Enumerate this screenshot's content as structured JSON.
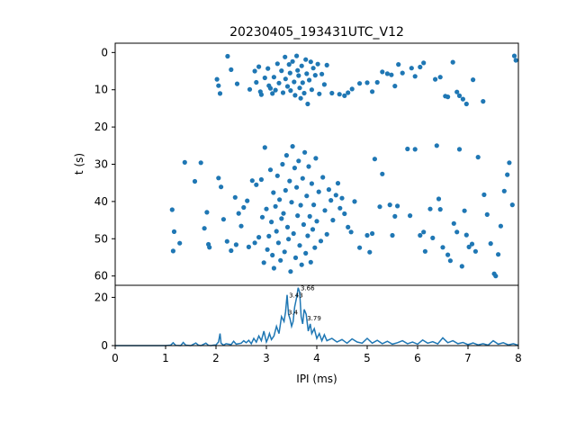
{
  "chart_data": [
    {
      "type": "scatter",
      "title": "20230405_193431UTC_V12",
      "xlabel": "",
      "ylabel": "t (s)",
      "xlim": [
        0,
        8
      ],
      "ylim": [
        62.5,
        -2.5
      ],
      "y_inverted": true,
      "yticks": [
        "0",
        "10",
        "20",
        "30",
        "40",
        "50",
        "60"
      ],
      "marker_color": "#1f77b4",
      "grid": false,
      "points": [
        [
          2.02,
          7.2
        ],
        [
          2.05,
          8.9
        ],
        [
          2.08,
          11.0
        ],
        [
          2.23,
          1.0
        ],
        [
          2.3,
          4.6
        ],
        [
          2.42,
          8.4
        ],
        [
          2.67,
          9.9
        ],
        [
          2.77,
          5.0
        ],
        [
          2.8,
          8.0
        ],
        [
          2.85,
          3.8
        ],
        [
          2.88,
          10.5
        ],
        [
          2.9,
          11.3
        ],
        [
          2.97,
          6.8
        ],
        [
          3.03,
          4.3
        ],
        [
          3.05,
          8.9
        ],
        [
          3.08,
          9.6
        ],
        [
          3.12,
          11.0
        ],
        [
          3.15,
          6.6
        ],
        [
          3.18,
          10.1
        ],
        [
          3.22,
          3.0
        ],
        [
          3.25,
          8.2
        ],
        [
          3.3,
          4.9
        ],
        [
          3.33,
          10.8
        ],
        [
          3.37,
          1.2
        ],
        [
          3.38,
          7.1
        ],
        [
          3.42,
          9.1
        ],
        [
          3.45,
          3.2
        ],
        [
          3.47,
          5.5
        ],
        [
          3.48,
          10.2
        ],
        [
          3.52,
          2.4
        ],
        [
          3.55,
          7.9
        ],
        [
          3.57,
          11.5
        ],
        [
          3.6,
          0.9
        ],
        [
          3.62,
          4.8
        ],
        [
          3.64,
          6.2
        ],
        [
          3.66,
          9.5
        ],
        [
          3.68,
          12.3
        ],
        [
          3.7,
          3.6
        ],
        [
          3.72,
          8.1
        ],
        [
          3.75,
          10.9
        ],
        [
          3.78,
          1.9
        ],
        [
          3.8,
          5.7
        ],
        [
          3.82,
          13.8
        ],
        [
          3.85,
          7.4
        ],
        [
          3.88,
          2.5
        ],
        [
          3.9,
          10.0
        ],
        [
          3.93,
          4.2
        ],
        [
          3.97,
          6.1
        ],
        [
          4.02,
          3.1
        ],
        [
          4.05,
          11.1
        ],
        [
          4.1,
          5.8
        ],
        [
          4.15,
          8.6
        ],
        [
          4.2,
          3.4
        ],
        [
          4.3,
          10.9
        ],
        [
          4.45,
          11.2
        ],
        [
          4.55,
          11.6
        ],
        [
          4.62,
          10.8
        ],
        [
          4.7,
          9.8
        ],
        [
          4.85,
          8.3
        ],
        [
          5.0,
          8.1
        ],
        [
          5.1,
          10.5
        ],
        [
          5.2,
          8.0
        ],
        [
          5.3,
          5.2
        ],
        [
          5.4,
          5.7
        ],
        [
          5.48,
          6.0
        ],
        [
          5.55,
          9.0
        ],
        [
          5.62,
          3.2
        ],
        [
          5.7,
          5.5
        ],
        [
          5.88,
          4.2
        ],
        [
          5.95,
          6.4
        ],
        [
          6.05,
          3.9
        ],
        [
          6.12,
          2.8
        ],
        [
          6.35,
          7.2
        ],
        [
          6.45,
          6.6
        ],
        [
          6.55,
          11.7
        ],
        [
          6.6,
          11.9
        ],
        [
          6.7,
          2.6
        ],
        [
          6.78,
          10.6
        ],
        [
          6.83,
          11.6
        ],
        [
          6.9,
          12.5
        ],
        [
          6.97,
          13.8
        ],
        [
          7.1,
          7.3
        ],
        [
          7.3,
          13.1
        ],
        [
          7.92,
          0.9
        ],
        [
          7.95,
          2.1
        ],
        [
          1.13,
          42.2
        ],
        [
          1.15,
          53.3
        ],
        [
          1.17,
          48.1
        ],
        [
          1.28,
          51.2
        ],
        [
          1.38,
          29.5
        ],
        [
          1.58,
          34.6
        ],
        [
          1.7,
          29.6
        ],
        [
          1.77,
          47.2
        ],
        [
          1.82,
          42.9
        ],
        [
          1.85,
          51.5
        ],
        [
          1.87,
          52.3
        ],
        [
          2.05,
          33.7
        ],
        [
          2.1,
          36.1
        ],
        [
          2.15,
          44.8
        ],
        [
          2.22,
          50.7
        ],
        [
          2.3,
          53.2
        ],
        [
          2.38,
          38.9
        ],
        [
          2.4,
          51.6
        ],
        [
          2.45,
          43.2
        ],
        [
          2.5,
          46.6
        ],
        [
          2.55,
          41.6
        ],
        [
          2.62,
          39.8
        ],
        [
          2.65,
          52.2
        ],
        [
          2.72,
          34.4
        ],
        [
          2.77,
          51.1
        ],
        [
          2.8,
          35.5
        ],
        [
          2.85,
          49.6
        ],
        [
          2.9,
          34.1
        ],
        [
          2.92,
          44.2
        ],
        [
          2.95,
          56.4
        ],
        [
          2.97,
          25.5
        ],
        [
          3.0,
          42.0
        ],
        [
          3.02,
          52.9
        ],
        [
          3.05,
          49.3
        ],
        [
          3.08,
          31.5
        ],
        [
          3.1,
          45.5
        ],
        [
          3.12,
          54.4
        ],
        [
          3.14,
          37.6
        ],
        [
          3.15,
          57.9
        ],
        [
          3.18,
          41.3
        ],
        [
          3.2,
          48.0
        ],
        [
          3.22,
          33.1
        ],
        [
          3.24,
          51.1
        ],
        [
          3.26,
          39.5
        ],
        [
          3.28,
          55.8
        ],
        [
          3.3,
          44.6
        ],
        [
          3.32,
          30.0
        ],
        [
          3.34,
          43.2
        ],
        [
          3.36,
          53.5
        ],
        [
          3.38,
          37.0
        ],
        [
          3.4,
          27.6
        ],
        [
          3.42,
          46.9
        ],
        [
          3.44,
          50.1
        ],
        [
          3.46,
          34.5
        ],
        [
          3.48,
          58.8
        ],
        [
          3.5,
          40.2
        ],
        [
          3.52,
          25.2
        ],
        [
          3.54,
          48.6
        ],
        [
          3.56,
          31.0
        ],
        [
          3.58,
          55.1
        ],
        [
          3.6,
          36.2
        ],
        [
          3.62,
          43.8
        ],
        [
          3.64,
          29.1
        ],
        [
          3.66,
          51.8
        ],
        [
          3.68,
          41.0
        ],
        [
          3.7,
          57.0
        ],
        [
          3.72,
          33.8
        ],
        [
          3.74,
          46.2
        ],
        [
          3.76,
          26.8
        ],
        [
          3.78,
          53.9
        ],
        [
          3.8,
          38.5
        ],
        [
          3.82,
          49.2
        ],
        [
          3.84,
          30.6
        ],
        [
          3.86,
          44.0
        ],
        [
          3.88,
          56.3
        ],
        [
          3.9,
          35.2
        ],
        [
          3.92,
          47.5
        ],
        [
          3.94,
          40.9
        ],
        [
          3.96,
          52.4
        ],
        [
          3.98,
          28.4
        ],
        [
          4.0,
          45.3
        ],
        [
          4.04,
          37.4
        ],
        [
          4.08,
          50.6
        ],
        [
          4.12,
          33.5
        ],
        [
          4.16,
          42.4
        ],
        [
          4.2,
          48.8
        ],
        [
          4.24,
          36.8
        ],
        [
          4.28,
          39.7
        ],
        [
          4.32,
          45.0
        ],
        [
          4.38,
          38.3
        ],
        [
          4.42,
          35.1
        ],
        [
          4.46,
          41.8
        ],
        [
          4.5,
          39.1
        ],
        [
          4.55,
          43.3
        ],
        [
          4.62,
          46.9
        ],
        [
          4.68,
          48.2
        ],
        [
          4.75,
          40.0
        ],
        [
          4.85,
          52.4
        ],
        [
          5.0,
          49.1
        ],
        [
          5.05,
          53.6
        ],
        [
          5.1,
          48.6
        ],
        [
          5.15,
          28.6
        ],
        [
          5.25,
          41.4
        ],
        [
          5.3,
          32.6
        ],
        [
          5.45,
          40.9
        ],
        [
          5.5,
          49.1
        ],
        [
          5.55,
          44.0
        ],
        [
          5.6,
          41.2
        ],
        [
          5.8,
          25.9
        ],
        [
          5.85,
          43.8
        ],
        [
          5.95,
          26.0
        ],
        [
          6.05,
          49.1
        ],
        [
          6.12,
          48.2
        ],
        [
          6.15,
          53.4
        ],
        [
          6.25,
          42.0
        ],
        [
          6.3,
          49.8
        ],
        [
          6.38,
          25.0
        ],
        [
          6.42,
          39.3
        ],
        [
          6.45,
          42.1
        ],
        [
          6.5,
          52.3
        ],
        [
          6.6,
          54.3
        ],
        [
          6.65,
          55.9
        ],
        [
          6.72,
          45.9
        ],
        [
          6.78,
          48.2
        ],
        [
          6.83,
          26.0
        ],
        [
          6.88,
          57.4
        ],
        [
          6.93,
          42.5
        ],
        [
          6.97,
          49.0
        ],
        [
          7.02,
          52.2
        ],
        [
          7.08,
          51.4
        ],
        [
          7.15,
          53.4
        ],
        [
          7.2,
          28.1
        ],
        [
          7.32,
          38.2
        ],
        [
          7.38,
          43.5
        ],
        [
          7.45,
          51.3
        ],
        [
          7.52,
          59.4
        ],
        [
          7.55,
          60.0
        ],
        [
          7.6,
          54.2
        ],
        [
          7.65,
          46.6
        ],
        [
          7.72,
          37.2
        ],
        [
          7.78,
          32.8
        ],
        [
          7.82,
          29.6
        ],
        [
          7.88,
          40.9
        ]
      ]
    },
    {
      "type": "line",
      "title": "",
      "xlabel": "IPI (ms)",
      "ylabel": "",
      "xlim": [
        0,
        8
      ],
      "ylim": [
        0,
        25
      ],
      "xticks": [
        "0",
        "1",
        "2",
        "3",
        "4",
        "5",
        "6",
        "7",
        "8"
      ],
      "yticks": [
        "0",
        "20"
      ],
      "line_color": "#1f77b4",
      "grid": false,
      "curve": {
        "x": [
          0.0,
          0.8,
          1.0,
          1.1,
          1.15,
          1.2,
          1.3,
          1.35,
          1.4,
          1.5,
          1.6,
          1.65,
          1.7,
          1.8,
          1.85,
          1.9,
          1.95,
          2.0,
          2.05,
          2.08,
          2.1,
          2.15,
          2.2,
          2.3,
          2.35,
          2.4,
          2.5,
          2.55,
          2.6,
          2.65,
          2.7,
          2.75,
          2.8,
          2.85,
          2.9,
          2.95,
          3.0,
          3.03,
          3.06,
          3.1,
          3.15,
          3.2,
          3.25,
          3.3,
          3.35,
          3.38,
          3.41,
          3.44,
          3.47,
          3.5,
          3.53,
          3.56,
          3.6,
          3.63,
          3.66,
          3.69,
          3.72,
          3.75,
          3.79,
          3.83,
          3.87,
          3.9,
          3.95,
          4.0,
          4.05,
          4.1,
          4.15,
          4.2,
          4.3,
          4.4,
          4.5,
          4.6,
          4.7,
          4.8,
          4.9,
          5.0,
          5.1,
          5.2,
          5.3,
          5.4,
          5.5,
          5.6,
          5.7,
          5.8,
          5.9,
          6.0,
          6.1,
          6.2,
          6.3,
          6.4,
          6.5,
          6.6,
          6.7,
          6.8,
          6.9,
          7.0,
          7.1,
          7.2,
          7.3,
          7.4,
          7.5,
          7.6,
          7.7,
          7.8,
          7.9,
          8.0
        ],
        "y": [
          0,
          0,
          0,
          0.2,
          1.2,
          0.1,
          0,
          1.3,
          0.2,
          0,
          1.1,
          0.2,
          0,
          1.0,
          0.1,
          0,
          0.2,
          0.3,
          1.5,
          5.0,
          1.0,
          0.2,
          0.8,
          0.4,
          1.8,
          0.6,
          1.0,
          2.0,
          1.2,
          2.2,
          0.8,
          3.0,
          1.4,
          4.0,
          2.0,
          6.0,
          1.5,
          3.0,
          5.0,
          2.5,
          4.0,
          8.0,
          5.0,
          12.0,
          10.0,
          14.0,
          21.0,
          13.0,
          11.0,
          8.0,
          10.0,
          16.0,
          20.0,
          24.0,
          22.0,
          12.0,
          9.0,
          15.0,
          13.0,
          6.0,
          9.0,
          5.0,
          7.0,
          3.0,
          5.0,
          2.0,
          4.5,
          2.0,
          3.0,
          1.5,
          2.5,
          1.0,
          2.8,
          1.5,
          1.0,
          3.0,
          1.0,
          2.2,
          0.8,
          1.8,
          0.6,
          1.2,
          2.0,
          0.8,
          1.5,
          0.6,
          2.3,
          1.0,
          1.6,
          0.7,
          3.2,
          1.2,
          2.0,
          0.8,
          1.3,
          0.4,
          1.1,
          0.3,
          0.8,
          0.2,
          2.0,
          0.6,
          1.2,
          0.3,
          0.8,
          0.1
        ]
      },
      "peak_labels": [
        {
          "text": "3.43",
          "x": 3.43,
          "y": 21.0
        },
        {
          "text": "3.66",
          "x": 3.66,
          "y": 24.0
        },
        {
          "text": "3.4",
          "x": 3.41,
          "y": 14.0
        },
        {
          "text": "3.79",
          "x": 3.79,
          "y": 11.5
        }
      ]
    }
  ]
}
